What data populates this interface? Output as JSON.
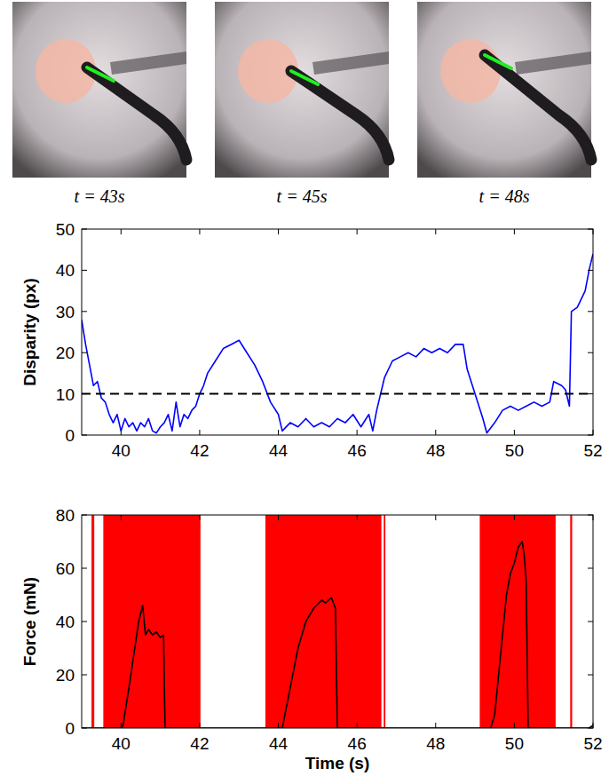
{
  "images": [
    {
      "label": "t = 43s"
    },
    {
      "label": "t = 45s"
    },
    {
      "label": "t = 48s"
    }
  ],
  "chart_data": [
    {
      "type": "line",
      "y_label": "Disparity (px)",
      "xlim": [
        39,
        52
      ],
      "xticks": [
        40,
        42,
        44,
        46,
        48,
        50,
        52
      ],
      "ylim": [
        0,
        50
      ],
      "yticks": [
        0,
        10,
        20,
        30,
        40,
        50
      ],
      "grid": false,
      "series": [
        {
          "type": "line",
          "color": "#0000ff",
          "x": [
            39.0,
            39.1,
            39.2,
            39.3,
            39.4,
            39.5,
            39.6,
            39.7,
            39.8,
            39.9,
            40.0,
            40.1,
            40.2,
            40.3,
            40.4,
            40.5,
            40.6,
            40.7,
            40.8,
            40.9,
            41.0,
            41.1,
            41.2,
            41.3,
            41.4,
            41.5,
            41.6,
            41.7,
            41.8,
            41.9,
            42.0,
            42.1,
            42.2,
            42.4,
            42.6,
            42.8,
            43.0,
            43.2,
            43.4,
            43.6,
            43.8,
            44.0,
            44.1,
            44.3,
            44.5,
            44.7,
            44.9,
            45.1,
            45.3,
            45.5,
            45.7,
            45.9,
            46.1,
            46.3,
            46.4,
            46.5,
            46.7,
            46.9,
            47.1,
            47.3,
            47.5,
            47.7,
            47.9,
            48.1,
            48.3,
            48.5,
            48.7,
            48.8,
            49.0,
            49.2,
            49.3,
            49.5,
            49.7,
            49.9,
            50.1,
            50.3,
            50.5,
            50.7,
            50.9,
            51.0,
            51.2,
            51.3,
            51.4,
            51.45,
            51.6,
            51.8,
            51.9,
            52.0
          ],
          "values": [
            28,
            22,
            17,
            12,
            13,
            9,
            8,
            5,
            3,
            5,
            1,
            4,
            2,
            3,
            1,
            3,
            2,
            4,
            1,
            0.5,
            2,
            3,
            5,
            1,
            8,
            2,
            5,
            4,
            6,
            7,
            10,
            12,
            15,
            18,
            21,
            22,
            23,
            20,
            17,
            13,
            8,
            5,
            1,
            3,
            2,
            4,
            2,
            3,
            2,
            4,
            3,
            5,
            2,
            5,
            1,
            6,
            14,
            18,
            19,
            20,
            19,
            21,
            20,
            21,
            20,
            22,
            22,
            16,
            10,
            4,
            0.5,
            3,
            6,
            7,
            6,
            7,
            8,
            7,
            8,
            13,
            12,
            11,
            7,
            30,
            31,
            35,
            40,
            44
          ]
        },
        {
          "type": "line",
          "line_style": "dashed",
          "color": "#000000",
          "x": [
            39,
            52
          ],
          "values": [
            10,
            10
          ]
        }
      ]
    },
    {
      "type": "line",
      "x_label": "Time (s)",
      "y_label": "Force (mN)",
      "xlim": [
        39,
        52
      ],
      "xticks": [
        40,
        42,
        44,
        46,
        48,
        50,
        52
      ],
      "ylim": [
        0,
        80
      ],
      "yticks": [
        0,
        20,
        40,
        60,
        80
      ],
      "grid": false,
      "series": [
        {
          "type": "span",
          "color": "#ff0000",
          "x_start": [
            39.25,
            39.55,
            43.67,
            46.68,
            49.12,
            51.42
          ],
          "x_end": [
            39.32,
            42.02,
            46.62,
            46.72,
            51.05,
            51.47
          ]
        },
        {
          "type": "line",
          "color": "#000000",
          "x": [
            39.0,
            40.0,
            40.05,
            40.2,
            40.35,
            40.45,
            40.55,
            40.62,
            40.7,
            40.8,
            40.9,
            41.0,
            41.08,
            41.12,
            44.0,
            44.1,
            44.3,
            44.5,
            44.7,
            44.9,
            45.1,
            45.2,
            45.35,
            45.45,
            45.5,
            49.4,
            49.5,
            49.6,
            49.7,
            49.8,
            49.9,
            50.0,
            50.1,
            50.2,
            50.25,
            50.3,
            50.35,
            51.9,
            52.0
          ],
          "values": [
            0,
            0,
            1,
            15,
            30,
            40,
            46,
            35,
            37,
            35,
            36,
            34,
            35,
            0,
            0,
            0,
            15,
            30,
            40,
            45,
            48,
            47,
            49,
            45,
            0,
            0,
            5,
            20,
            35,
            50,
            58,
            62,
            68,
            70,
            65,
            55,
            0,
            0,
            1
          ]
        }
      ]
    }
  ]
}
